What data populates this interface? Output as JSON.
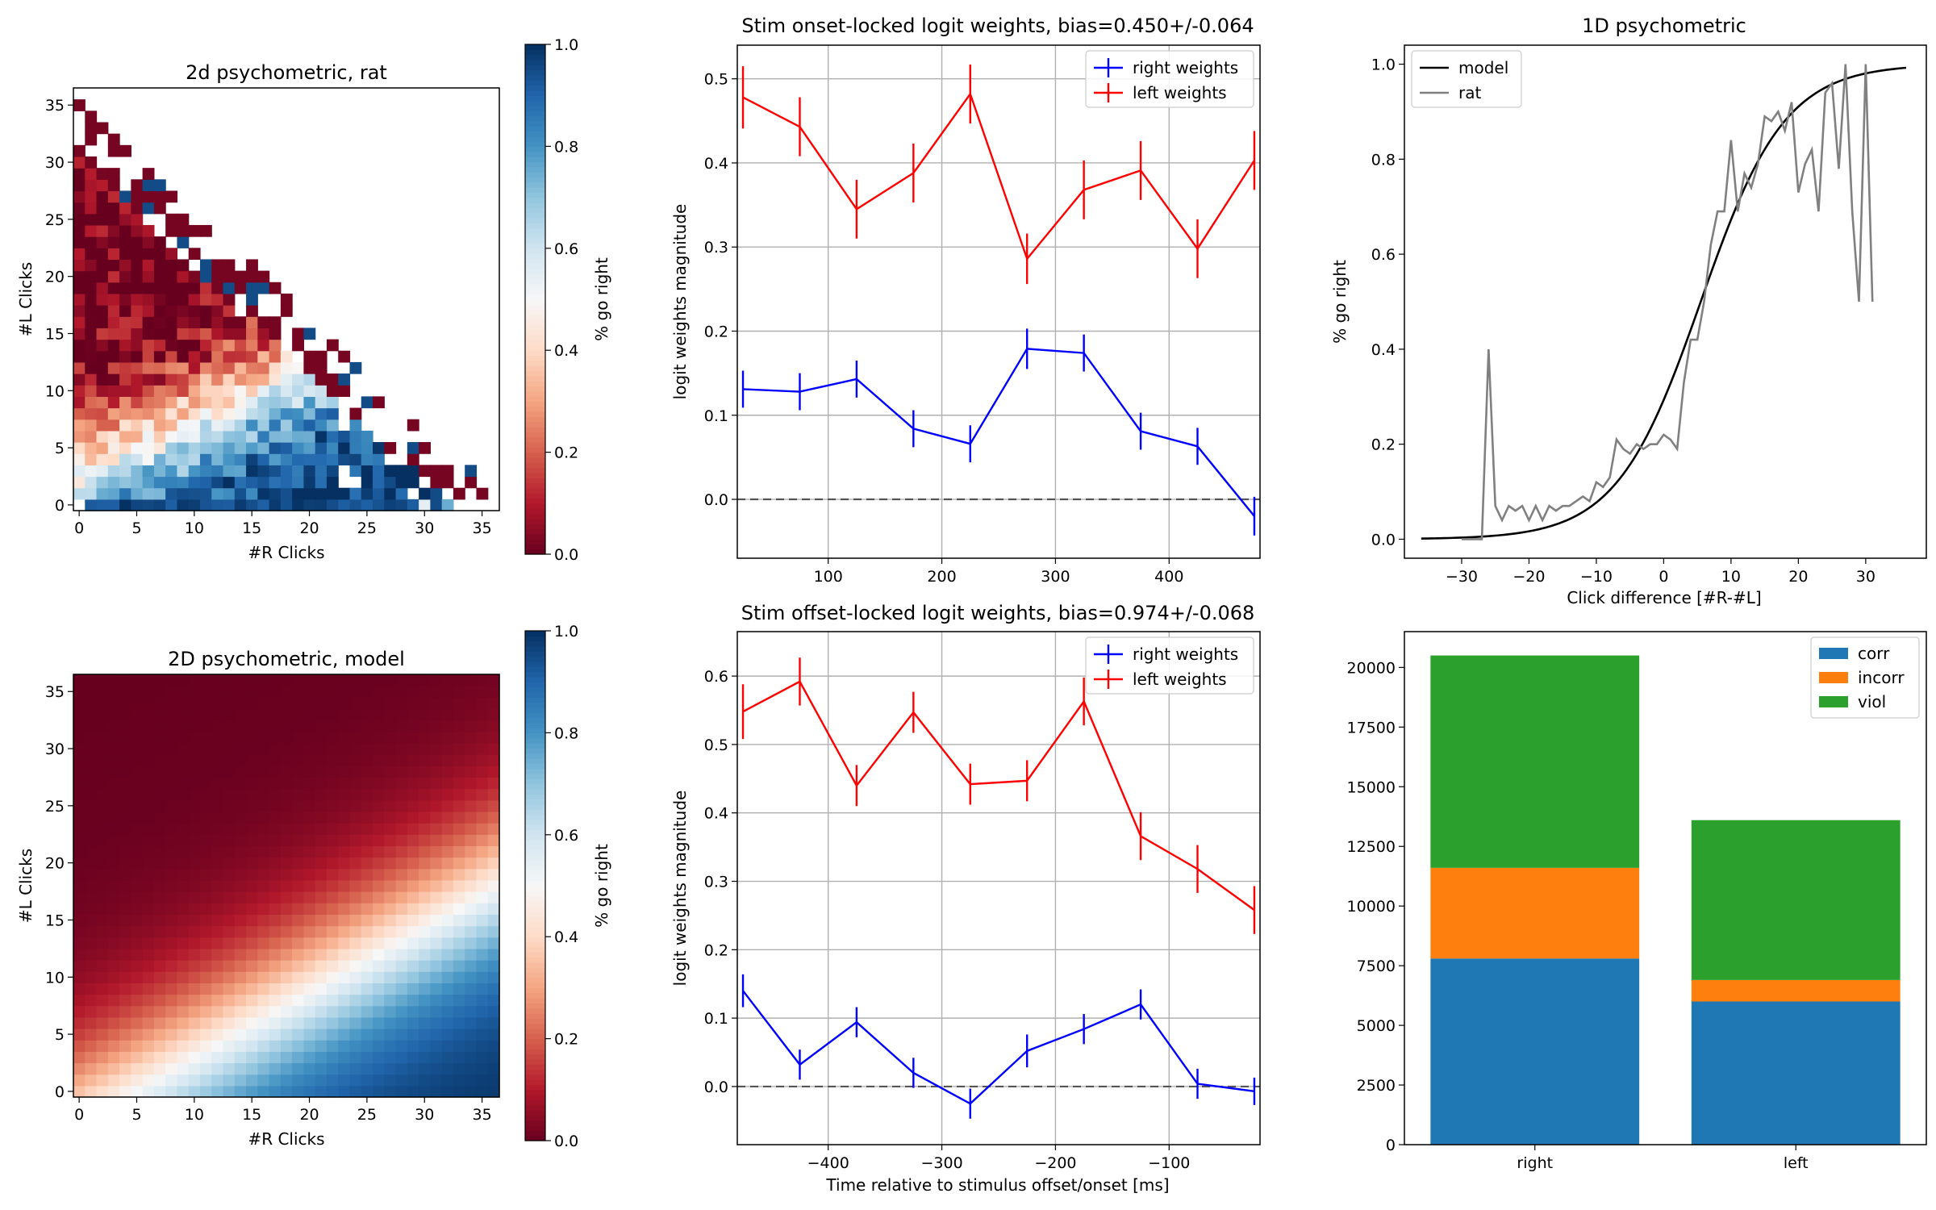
{
  "figure": {
    "panel_count": 6
  },
  "colors": {
    "right": "#0000ff",
    "left": "#ff0000",
    "model_line": "#000000",
    "rat_line": "#808080",
    "corr": "#1f77b4",
    "incorr": "#ff7f0e",
    "viol": "#2ca02c"
  },
  "chart_data": [
    {
      "type": "heatmap",
      "title": "2d psychometric, rat",
      "xlabel": "#R Clicks",
      "ylabel": "#L Clicks",
      "xticks": [
        0,
        5,
        10,
        15,
        20,
        25,
        30,
        35
      ],
      "yticks": [
        0,
        5,
        10,
        15,
        20,
        25,
        30,
        35
      ],
      "xlim": [
        -0.5,
        36.5
      ],
      "ylim": [
        -0.5,
        36.5
      ],
      "colormap": "RdBu",
      "colorbar": {
        "label": "% go right",
        "ticks": [
          "0.0",
          "0.2",
          "0.4",
          "0.6",
          "0.8",
          "1.0"
        ]
      },
      "description_of_values": "p(go right) by click counts; sparse upper-left triangle"
    },
    {
      "type": "line",
      "title": "Stim onset-locked logit weights, bias=0.450+/-0.064",
      "xlabel": "",
      "ylabel": "logit weights magnitude",
      "xticks": [
        100,
        200,
        300,
        400
      ],
      "yticks": [
        "0.0",
        "0.1",
        "0.2",
        "0.3",
        "0.4",
        "0.5"
      ],
      "xlim": [
        20,
        480
      ],
      "ylim": [
        -0.07,
        0.54
      ],
      "grid": true,
      "legend": "top-right",
      "x": [
        25,
        75,
        125,
        175,
        225,
        275,
        325,
        375,
        425,
        475
      ],
      "series": [
        {
          "name": "right weights",
          "values": [
            0.131,
            0.128,
            0.143,
            0.084,
            0.066,
            0.179,
            0.174,
            0.081,
            0.063,
            -0.02
          ],
          "err": [
            0.022,
            0.022,
            0.022,
            0.022,
            0.022,
            0.024,
            0.022,
            0.022,
            0.022,
            0.023
          ]
        },
        {
          "name": "left weights",
          "values": [
            0.478,
            0.443,
            0.345,
            0.388,
            0.482,
            0.286,
            0.368,
            0.391,
            0.298,
            0.403
          ],
          "err": [
            0.037,
            0.035,
            0.035,
            0.035,
            0.035,
            0.03,
            0.035,
            0.035,
            0.035,
            0.035
          ]
        }
      ],
      "hline": 0.0
    },
    {
      "type": "line",
      "title": "1D psychometric",
      "xlabel": "Click difference [#R-#L]",
      "ylabel": "% go right",
      "xticks": [
        -30,
        -20,
        -10,
        0,
        10,
        20,
        30
      ],
      "yticks": [
        "0.0",
        "0.2",
        "0.4",
        "0.6",
        "0.8",
        "1.0"
      ],
      "xlim": [
        -38.5,
        39
      ],
      "ylim": [
        -0.04,
        1.04
      ],
      "grid": false,
      "legend": "top-left",
      "series": [
        {
          "name": "model",
          "kind": "logistic",
          "x0": 5.5,
          "k": 0.16,
          "range": [
            -36,
            36
          ]
        },
        {
          "name": "rat",
          "x": [
            -30,
            -28,
            -27,
            -26,
            -25,
            -24,
            -23,
            -22,
            -21,
            -20,
            -19,
            -18,
            -17,
            -16,
            -15,
            -14,
            -13,
            -12,
            -11,
            -10,
            -9,
            -8,
            -7,
            -6,
            -5,
            -4,
            -3,
            -2,
            -1,
            0,
            1,
            2,
            3,
            4,
            5,
            6,
            7,
            8,
            9,
            10,
            11,
            12,
            13,
            14,
            15,
            16,
            17,
            18,
            19,
            20,
            21,
            22,
            23,
            24,
            25,
            26,
            27,
            28,
            29,
            30,
            31
          ],
          "values": [
            0.0,
            0.0,
            0.0,
            0.4,
            0.07,
            0.04,
            0.07,
            0.06,
            0.07,
            0.04,
            0.07,
            0.04,
            0.07,
            0.06,
            0.07,
            0.07,
            0.08,
            0.09,
            0.08,
            0.12,
            0.11,
            0.13,
            0.21,
            0.19,
            0.18,
            0.2,
            0.19,
            0.2,
            0.2,
            0.22,
            0.21,
            0.19,
            0.33,
            0.42,
            0.42,
            0.5,
            0.62,
            0.69,
            0.69,
            0.84,
            0.69,
            0.77,
            0.74,
            0.79,
            0.89,
            0.88,
            0.9,
            0.86,
            0.92,
            0.73,
            0.79,
            0.82,
            0.69,
            0.94,
            0.96,
            0.78,
            1.0,
            0.69,
            0.5,
            1.0,
            0.5
          ]
        }
      ]
    },
    {
      "type": "heatmap",
      "title": "2D psychometric, model",
      "xlabel": "#R Clicks",
      "ylabel": "#L Clicks",
      "xticks": [
        0,
        5,
        10,
        15,
        20,
        25,
        30,
        35
      ],
      "yticks": [
        0,
        5,
        10,
        15,
        20,
        25,
        30,
        35
      ],
      "xlim": [
        -0.5,
        36.5
      ],
      "ylim": [
        -0.5,
        36.5
      ],
      "colormap": "RdBu",
      "colorbar": {
        "label": "% go right",
        "ticks": [
          "0.0",
          "0.2",
          "0.4",
          "0.6",
          "0.8",
          "1.0"
        ]
      },
      "model": {
        "kind": "logistic",
        "b0": -0.6,
        "bR": 0.125,
        "bL": -0.22
      }
    },
    {
      "type": "line",
      "title": "Stim offset-locked logit weights, bias=0.974+/-0.068",
      "xlabel": "Time relative to stimulus offset/onset [ms]",
      "ylabel": "logit weights magnitude",
      "xticks": [
        -400,
        -300,
        -200,
        -100
      ],
      "yticks": [
        "0.0",
        "0.1",
        "0.2",
        "0.3",
        "0.4",
        "0.5",
        "0.6"
      ],
      "xlim": [
        -480,
        -20
      ],
      "ylim": [
        -0.085,
        0.665
      ],
      "grid": true,
      "legend": "top-right",
      "x": [
        -475,
        -425,
        -375,
        -325,
        -275,
        -225,
        -175,
        -125,
        -75,
        -25
      ],
      "series": [
        {
          "name": "right weights",
          "values": [
            0.14,
            0.032,
            0.094,
            0.02,
            -0.025,
            0.052,
            0.084,
            0.12,
            0.004,
            -0.007
          ],
          "err": [
            0.024,
            0.022,
            0.022,
            0.022,
            0.022,
            0.024,
            0.022,
            0.022,
            0.022,
            0.02
          ]
        },
        {
          "name": "left weights",
          "values": [
            0.548,
            0.592,
            0.44,
            0.547,
            0.442,
            0.447,
            0.563,
            0.366,
            0.318,
            0.258
          ],
          "err": [
            0.04,
            0.035,
            0.03,
            0.03,
            0.03,
            0.03,
            0.035,
            0.035,
            0.035,
            0.035
          ]
        }
      ],
      "hline": 0.0
    },
    {
      "type": "bar",
      "stacked": true,
      "title": "",
      "xlabel": "",
      "ylabel": "",
      "categories": [
        "right",
        "left"
      ],
      "yticks": [
        "0",
        "2500",
        "5000",
        "7500",
        "10000",
        "12500",
        "15000",
        "17500",
        "20000"
      ],
      "ylim": [
        0,
        21500
      ],
      "legend": "top-right",
      "series": [
        {
          "name": "corr",
          "values": [
            7800,
            6000
          ]
        },
        {
          "name": "incorr",
          "values": [
            3800,
            900
          ]
        },
        {
          "name": "viol",
          "values": [
            8900,
            6700
          ]
        }
      ]
    }
  ]
}
